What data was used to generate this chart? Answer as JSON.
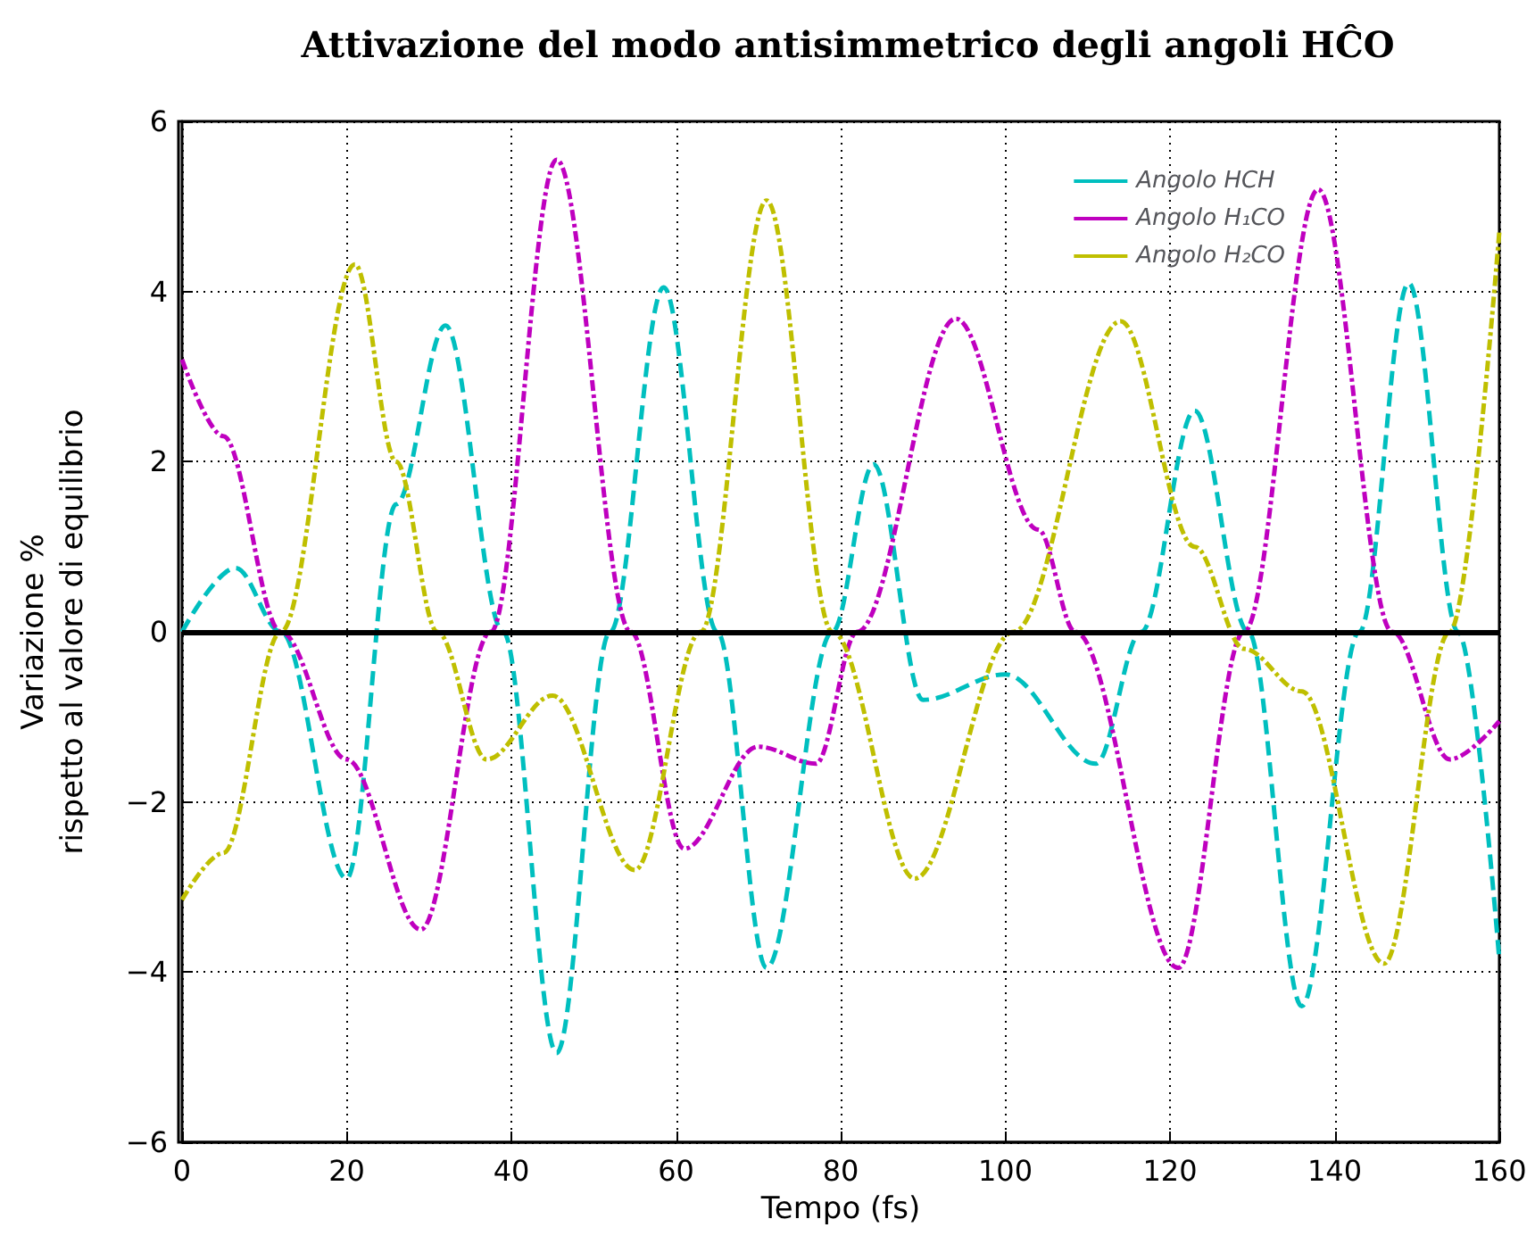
{
  "chart_data": {
    "type": "line",
    "title": "Attivazione del modo antisimmetrico degli angoli HĈO",
    "xlabel": "Tempo (fs)",
    "ylabel": "Variazione %\nrispetto al valore di equilibrio",
    "xlim": [
      0,
      160
    ],
    "xticks": [
      0,
      20,
      40,
      60,
      80,
      100,
      120,
      140,
      160
    ],
    "ylim": [
      -6,
      6
    ],
    "yticks": [
      {
        "value": -6,
        "label": "−6"
      },
      {
        "value": -4,
        "label": "−4"
      },
      {
        "value": -2,
        "label": "−2"
      },
      0,
      2,
      4,
      6
    ],
    "grid": true,
    "legend": "top right",
    "marker": "none",
    "ref_lines": [
      {
        "axis": "y",
        "value": 0,
        "color": "#000000",
        "line_style": "solid"
      }
    ],
    "series": [
      {
        "name": "Angolo HCH",
        "color": "#00bfbf",
        "line_style": "dashed",
        "x": [
          0,
          6.5,
          12,
          20,
          26,
          32,
          39,
          45.5,
          52,
          58.5,
          65,
          71,
          79,
          84,
          90,
          100,
          111,
          116.5,
          123,
          129.5,
          136,
          143,
          149,
          155,
          160
        ],
        "values": [
          0,
          0.75,
          0,
          -2.9,
          1.5,
          3.6,
          0,
          -4.95,
          0,
          4.05,
          0,
          -3.95,
          0,
          1.97,
          -0.8,
          -0.5,
          -1.55,
          0,
          2.6,
          0,
          -4.4,
          0,
          4.1,
          0,
          -3.85
        ]
      },
      {
        "name": "Angolo H₁CO",
        "color": "#bf00bf",
        "line_style": "dashdot",
        "x": [
          0,
          5,
          12,
          20,
          29,
          37.5,
          45.5,
          54.5,
          61,
          70,
          77,
          82,
          94,
          104,
          108.5,
          121,
          129,
          138,
          147,
          154,
          160
        ],
        "values": [
          3.2,
          2.3,
          0,
          -1.5,
          -3.5,
          0,
          5.55,
          0,
          -2.55,
          -1.35,
          -1.55,
          0,
          3.68,
          1.2,
          0,
          -3.95,
          0,
          5.2,
          0,
          -1.5,
          -1.05
        ]
      },
      {
        "name": "Angolo H₂CO",
        "color": "#bfbf00",
        "line_style": "dashdot",
        "x": [
          0,
          5,
          12,
          21,
          26,
          31,
          37,
          45,
          55,
          63,
          71,
          79,
          89,
          101,
          114,
          123,
          129,
          136,
          146,
          154,
          160
        ],
        "values": [
          -3.15,
          -2.6,
          0,
          4.32,
          2,
          0,
          -1.5,
          -0.75,
          -2.8,
          0,
          5.07,
          0,
          -2.9,
          0,
          3.65,
          1,
          -0.2,
          -0.7,
          -3.9,
          0,
          4.7
        ]
      }
    ]
  }
}
